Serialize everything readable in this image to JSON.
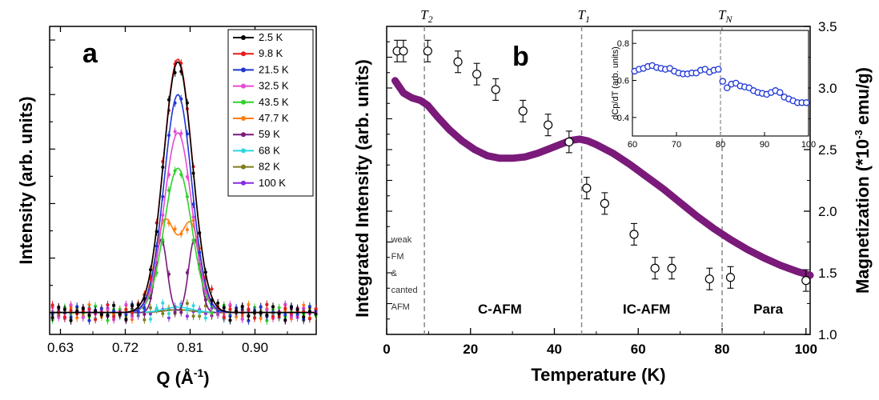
{
  "chart_data": [
    {
      "type": "line",
      "panel_label": "a",
      "xlabel": "Q (Å",
      "xlabel_sup": "-1",
      "xlabel_tail": ")",
      "ylabel": "Intensity (arb. units)",
      "xlim": [
        0.615,
        0.985
      ],
      "ylim": [
        -0.08,
        1.05
      ],
      "xticks": [
        0.63,
        0.72,
        0.81,
        0.9
      ],
      "xtick_labels": [
        "0.63",
        "0.72",
        "0.81",
        "0.90"
      ],
      "legend_position": "top-right",
      "series": [
        {
          "name": "2.5 K",
          "color": "#000000",
          "A1": 0.92,
          "A2": 0.92
        },
        {
          "name": "9.8 K",
          "color": "#e8191b",
          "A1": 0.93,
          "A2": 0.93
        },
        {
          "name": "21.5 K",
          "color": "#1f36d6",
          "A1": 0.8,
          "A2": 0.8
        },
        {
          "name": "32.5 K",
          "color": "#e64ad2",
          "A1": 0.66,
          "A2": 0.66
        },
        {
          "name": "43.5 K",
          "color": "#2fd12c",
          "A1": 0.53,
          "A2": 0.53
        },
        {
          "name": "47.7 K",
          "color": "#ff7f0e",
          "A1": 0.33,
          "A2": 0.32
        },
        {
          "name": "59 K",
          "color": "#7a1a7a",
          "A1": 0.27,
          "A2": 0.27
        },
        {
          "name": "68 K",
          "color": "#2ad8e0",
          "A1": 0.02,
          "A2": 0.02
        },
        {
          "name": "82 K",
          "color": "#7d7d1a",
          "A1": 0.01,
          "A2": 0.01
        },
        {
          "name": "100 K",
          "color": "#8a2be2",
          "A1": 0.01,
          "A2": 0.01
        }
      ],
      "peak_model": {
        "center": 0.793,
        "split": [
          0.0,
          0.0,
          0.0,
          0.0,
          0.0,
          0.018,
          0.023,
          0.0,
          0.0,
          0.0
        ],
        "width": [
          0.02,
          0.02,
          0.019,
          0.019,
          0.019,
          0.014,
          0.008,
          0.02,
          0.02,
          0.02
        ]
      }
    },
    {
      "type": "scatter",
      "panel_label": "b",
      "xlabel": "Temperature (K)",
      "ylabel": "Integrated Intensity (arb. units)",
      "y2label_main": "Magnetization (*10",
      "y2label_sup": "-3",
      "y2label_tail": " emu/g)",
      "xlim": [
        0,
        101
      ],
      "xticks": [
        0,
        20,
        40,
        60,
        80,
        100
      ],
      "y2lim": [
        1.0,
        3.5
      ],
      "y2ticks": [
        1.0,
        1.5,
        2.0,
        2.5,
        3.0,
        3.5
      ],
      "y2tick_labels": [
        "1.0",
        "1.5",
        "2.0",
        "2.5",
        "3.0",
        "3.5"
      ],
      "intensity_ylim": [
        0,
        1.0
      ],
      "intensity_points": [
        {
          "x": 2.5,
          "y": 0.92,
          "err": 0.035
        },
        {
          "x": 4.0,
          "y": 0.92,
          "err": 0.035
        },
        {
          "x": 9.8,
          "y": 0.92,
          "err": 0.035
        },
        {
          "x": 17,
          "y": 0.885,
          "err": 0.035
        },
        {
          "x": 21.5,
          "y": 0.845,
          "err": 0.035
        },
        {
          "x": 26,
          "y": 0.795,
          "err": 0.035
        },
        {
          "x": 32.5,
          "y": 0.725,
          "err": 0.035
        },
        {
          "x": 38.5,
          "y": 0.68,
          "err": 0.035
        },
        {
          "x": 43.5,
          "y": 0.625,
          "err": 0.035
        },
        {
          "x": 47.7,
          "y": 0.475,
          "err": 0.035
        },
        {
          "x": 52,
          "y": 0.425,
          "err": 0.035
        },
        {
          "x": 59,
          "y": 0.325,
          "err": 0.035
        },
        {
          "x": 64,
          "y": 0.215,
          "err": 0.035
        },
        {
          "x": 68,
          "y": 0.215,
          "err": 0.035
        },
        {
          "x": 77,
          "y": 0.18,
          "err": 0.035
        },
        {
          "x": 82,
          "y": 0.185,
          "err": 0.035
        },
        {
          "x": 100,
          "y": 0.175,
          "err": 0.035
        }
      ],
      "magnetization_color": "#7a1a7a",
      "magnetization_curve": [
        [
          2.0,
          3.06
        ],
        [
          4,
          2.96
        ],
        [
          6,
          2.92
        ],
        [
          8,
          2.9
        ],
        [
          9.8,
          2.86
        ],
        [
          12,
          2.77
        ],
        [
          15,
          2.66
        ],
        [
          18,
          2.57
        ],
        [
          21,
          2.5
        ],
        [
          24,
          2.45
        ],
        [
          27,
          2.43
        ],
        [
          30,
          2.43
        ],
        [
          33,
          2.44
        ],
        [
          36,
          2.47
        ],
        [
          39,
          2.51
        ],
        [
          42,
          2.55
        ],
        [
          44,
          2.575
        ],
        [
          46,
          2.585
        ],
        [
          48,
          2.57
        ],
        [
          50,
          2.54
        ],
        [
          54,
          2.47
        ],
        [
          58,
          2.38
        ],
        [
          62,
          2.28
        ],
        [
          66,
          2.18
        ],
        [
          70,
          2.07
        ],
        [
          74,
          1.96
        ],
        [
          78,
          1.86
        ],
        [
          82,
          1.77
        ],
        [
          86,
          1.69
        ],
        [
          90,
          1.62
        ],
        [
          94,
          1.56
        ],
        [
          98,
          1.51
        ],
        [
          101,
          1.48
        ]
      ],
      "transitions": [
        {
          "label": "T",
          "sub": "2",
          "x": 9.0
        },
        {
          "label": "T",
          "sub": "1",
          "x": 46.5
        },
        {
          "label": "T",
          "sub": "N",
          "x": 80.0
        }
      ],
      "regions": [
        {
          "lines": [
            "weak",
            "FM",
            "&",
            "canted",
            "AFM"
          ],
          "x": 0.5
        },
        {
          "lines": [
            "C-AFM"
          ],
          "x": 27
        },
        {
          "lines": [
            "IC-AFM"
          ],
          "x": 62
        },
        {
          "lines": [
            "Para"
          ],
          "x": 91
        }
      ],
      "inset": {
        "ylabel": "dCp/dT (arb. units)",
        "xlim": [
          60,
          100
        ],
        "ylim": [
          0.3,
          0.87
        ],
        "xticks": [
          60,
          70,
          80,
          90,
          100
        ],
        "yticks": [
          0.4,
          0.6,
          0.8
        ],
        "ytick_labels": [
          "0.4",
          "0.6",
          "0.8"
        ],
        "color": "#1f36d6",
        "points": [
          [
            60.5,
            0.65
          ],
          [
            61.5,
            0.66
          ],
          [
            62.5,
            0.665
          ],
          [
            63.5,
            0.675
          ],
          [
            64.5,
            0.68
          ],
          [
            65.5,
            0.67
          ],
          [
            66.5,
            0.665
          ],
          [
            67.5,
            0.66
          ],
          [
            68.5,
            0.665
          ],
          [
            69.5,
            0.65
          ],
          [
            70.5,
            0.64
          ],
          [
            71.5,
            0.635
          ],
          [
            72.5,
            0.635
          ],
          [
            73.5,
            0.64
          ],
          [
            74.5,
            0.64
          ],
          [
            75.5,
            0.655
          ],
          [
            76.5,
            0.66
          ],
          [
            77.5,
            0.645
          ],
          [
            78.5,
            0.655
          ],
          [
            79.5,
            0.66
          ],
          [
            80.5,
            0.595
          ],
          [
            81.5,
            0.56
          ],
          [
            82.5,
            0.58
          ],
          [
            83.5,
            0.585
          ],
          [
            84.5,
            0.57
          ],
          [
            85.5,
            0.565
          ],
          [
            86.5,
            0.56
          ],
          [
            87.5,
            0.545
          ],
          [
            88.5,
            0.535
          ],
          [
            89.5,
            0.53
          ],
          [
            90.5,
            0.525
          ],
          [
            91.5,
            0.535
          ],
          [
            92.5,
            0.545
          ],
          [
            93.5,
            0.535
          ],
          [
            94.5,
            0.51
          ],
          [
            95.5,
            0.5
          ],
          [
            96.5,
            0.49
          ],
          [
            97.5,
            0.48
          ],
          [
            98.5,
            0.48
          ],
          [
            99.5,
            0.48
          ]
        ]
      }
    }
  ]
}
